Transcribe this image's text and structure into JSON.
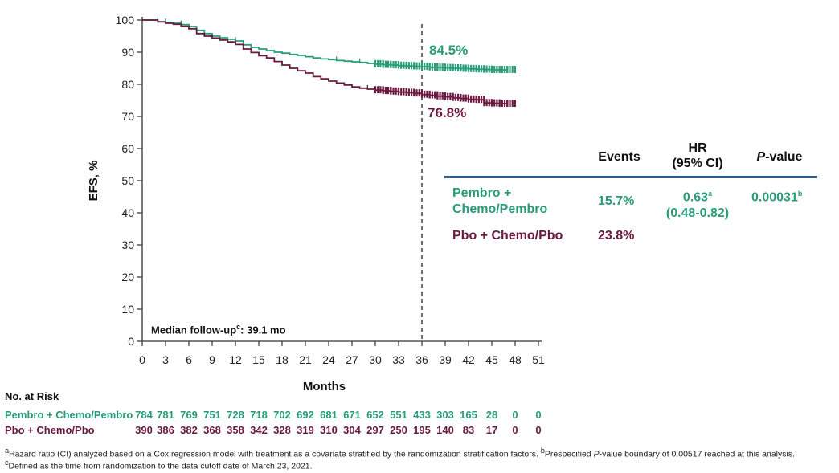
{
  "chart_data": {
    "type": "line",
    "ylabel": "EFS, %",
    "xlabel": "Months",
    "ylim": [
      0,
      100
    ],
    "xlim": [
      0,
      51
    ],
    "xticks": [
      "0",
      "3",
      "6",
      "9",
      "12",
      "15",
      "18",
      "21",
      "24",
      "27",
      "30",
      "33",
      "36",
      "39",
      "42",
      "45",
      "48",
      "51"
    ],
    "yticks": [
      "0",
      "10",
      "20",
      "30",
      "40",
      "50",
      "60",
      "70",
      "80",
      "90",
      "100"
    ],
    "reference_line_x": 36,
    "series": [
      {
        "name": "Pembro + Chemo/Pembro",
        "color": "#2a9d78",
        "end_label": "84.5%",
        "x": [
          0,
          2,
          3,
          4,
          5,
          6,
          7,
          8,
          9,
          10,
          11,
          12,
          13,
          14,
          15,
          16,
          17,
          18,
          19,
          20,
          21,
          22,
          23,
          24,
          25,
          26,
          27,
          28,
          29,
          30,
          31,
          32,
          33,
          34,
          35,
          36,
          37,
          38,
          39,
          40,
          41,
          42,
          43,
          44,
          45,
          46,
          47
        ],
        "y": [
          100,
          99.5,
          99.2,
          99,
          98.6,
          98,
          96.8,
          95.8,
          95,
          94.5,
          94,
          93.5,
          92.3,
          91.5,
          91,
          90.5,
          90,
          89.7,
          89.3,
          89,
          88.6,
          88.2,
          87.9,
          87.7,
          87.4,
          87.2,
          87,
          86.8,
          86.5,
          86.3,
          86.1,
          86,
          85.8,
          85.7,
          85.6,
          85.5,
          85.3,
          85.2,
          85.1,
          85,
          84.9,
          84.8,
          84.7,
          84.6,
          84.5,
          84.5,
          84.5
        ],
        "censor_marks": [
          2,
          3,
          5,
          12,
          25,
          28,
          30,
          31,
          32,
          33,
          34,
          35,
          36,
          37,
          38,
          39,
          40,
          41,
          42,
          43,
          44,
          45,
          46,
          47
        ]
      },
      {
        "name": "Pbo + Chemo/Pbo",
        "color": "#6b1a3f",
        "end_label": "76.8%",
        "x": [
          0,
          2,
          3,
          4,
          5,
          6,
          7,
          8,
          9,
          10,
          11,
          12,
          13,
          14,
          15,
          16,
          17,
          18,
          19,
          20,
          21,
          22,
          23,
          24,
          25,
          26,
          27,
          28,
          29,
          30,
          31,
          32,
          33,
          34,
          35,
          36,
          37,
          38,
          39,
          40,
          41,
          42,
          43,
          44,
          45,
          46,
          47
        ],
        "y": [
          100,
          99.4,
          99,
          98.7,
          98.1,
          97.3,
          95.8,
          95,
          94.4,
          93.8,
          93.2,
          92.4,
          91,
          89.9,
          88.9,
          88.2,
          87.1,
          86,
          85,
          84.2,
          83.5,
          82.4,
          81.7,
          81,
          80.4,
          79.8,
          79.2,
          78.8,
          78.5,
          78.2,
          78,
          77.8,
          77.6,
          77.4,
          77.2,
          76.8,
          76.6,
          76.3,
          76.1,
          75.8,
          75.6,
          75.3,
          75.2,
          74.2,
          74.1,
          74,
          74
        ],
        "censor_marks": [
          12,
          17,
          29,
          30,
          31,
          32,
          33,
          34,
          35,
          36,
          37,
          38,
          39,
          40,
          41,
          42,
          43,
          44,
          45,
          46,
          47
        ]
      }
    ]
  },
  "median_followup": {
    "text": "Median follow-up",
    "sup": "c",
    "value": ": 39.1 mo"
  },
  "hr_table": {
    "header_events": "Events",
    "header_hr_line1": "HR",
    "header_hr_line2": "(95% CI)",
    "header_p_italic": "P",
    "header_p_rest": "-value",
    "rows": [
      {
        "name_line1": "Pembro +",
        "name_line2": "Chemo/Pembro",
        "events": "15.7%",
        "hr": "0.63",
        "hr_sup": "a",
        "ci": "(0.48-0.82)",
        "p": "0.00031",
        "p_sup": "b"
      },
      {
        "name_line1": "Pbo + Chemo/Pbo",
        "events": "23.8%"
      }
    ]
  },
  "risk_table": {
    "title": "No. at Risk",
    "rows": [
      {
        "name": "Pembro + Chemo/Pembro",
        "values": [
          "784",
          "781",
          "769",
          "751",
          "728",
          "718",
          "702",
          "692",
          "681",
          "671",
          "652",
          "551",
          "433",
          "303",
          "165",
          "28",
          "0",
          "0"
        ]
      },
      {
        "name": "Pbo + Chemo/Pbo",
        "values": [
          "390",
          "386",
          "382",
          "368",
          "358",
          "342",
          "328",
          "319",
          "310",
          "304",
          "297",
          "250",
          "195",
          "140",
          "83",
          "17",
          "0",
          "0"
        ]
      }
    ]
  },
  "footnotes": {
    "a_sup": "a",
    "a_text": "Hazard ratio (CI) analyzed based on a Cox regression model with treatment as a covariate stratified by the randomization stratification factors. ",
    "b_sup": "b",
    "b_text_pre": "Prespecified ",
    "b_text_italic": "P",
    "b_text_post": "-value boundary of 0.00517 reached at this analysis.",
    "c_sup": "c",
    "c_text": "Defined as the time from randomization to the data cutoff date of March 23, 2021."
  }
}
